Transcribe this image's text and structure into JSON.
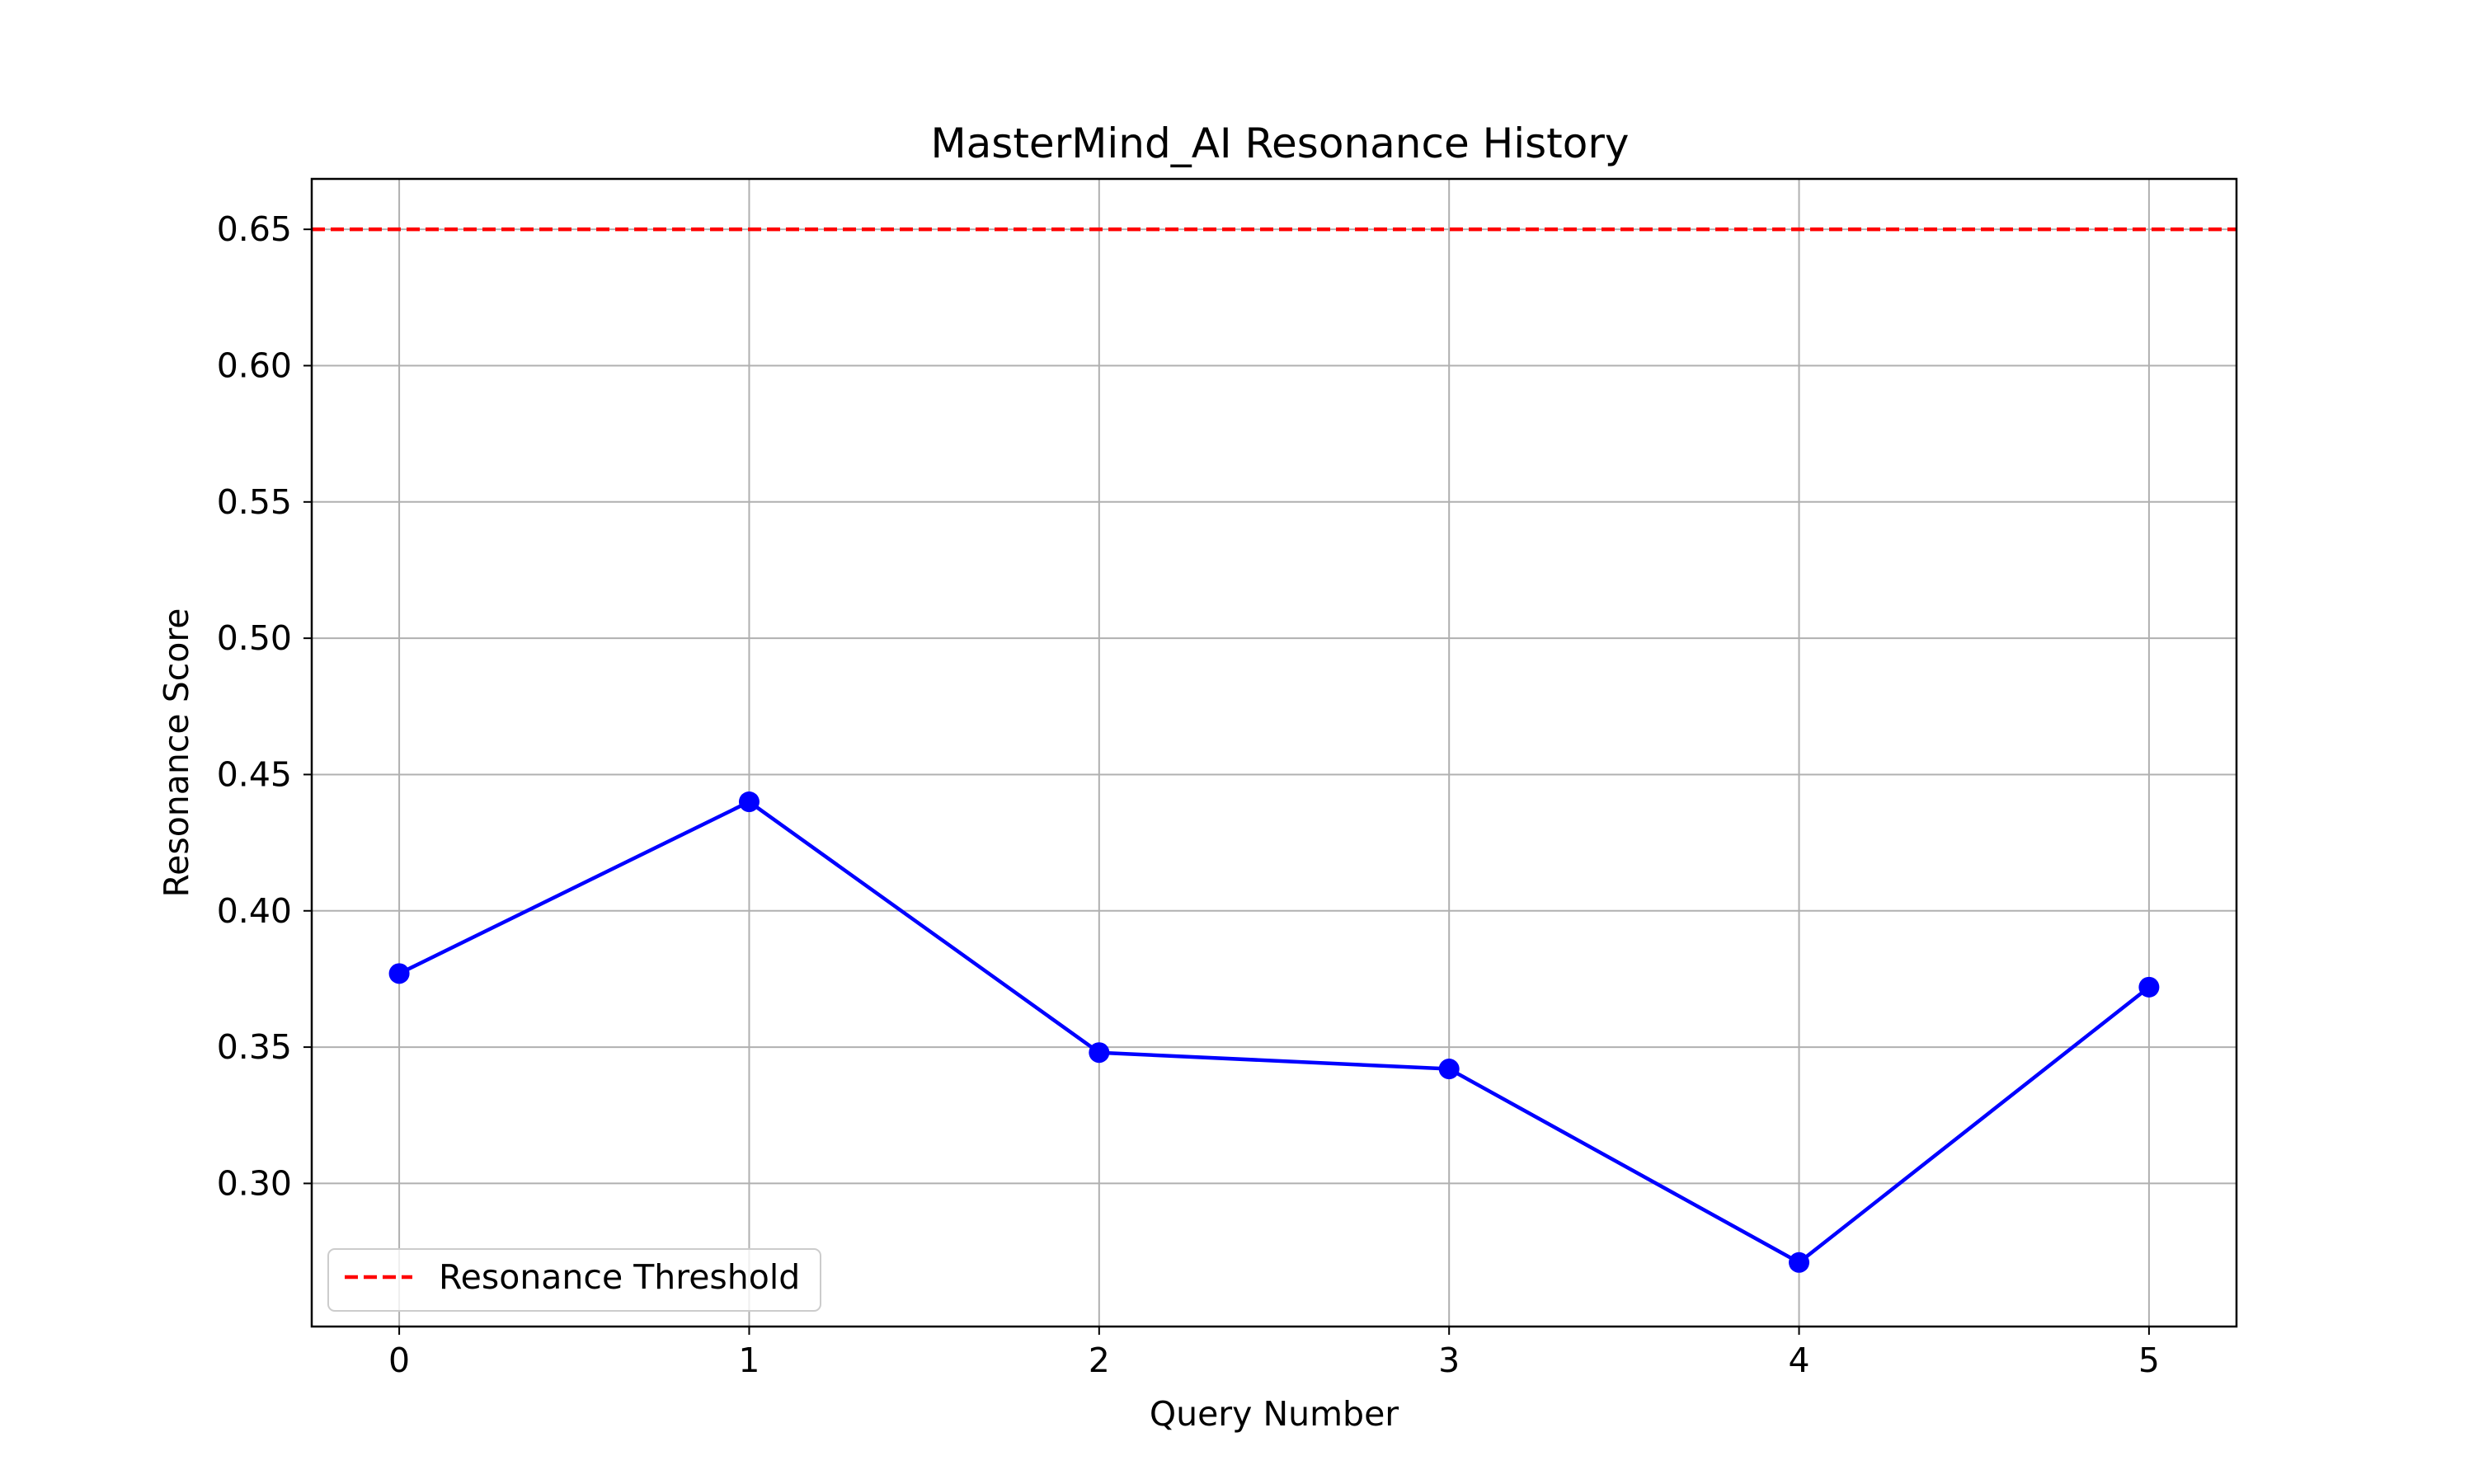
{
  "chart_data": {
    "type": "line",
    "title": "MasterMind_AI Resonance History",
    "xlabel": "Query Number",
    "ylabel": "Resonance Score",
    "x": [
      0,
      1,
      2,
      3,
      4,
      5
    ],
    "xticks": [
      "0",
      "1",
      "2",
      "3",
      "4",
      "5"
    ],
    "xlim": [
      -0.25,
      5.25
    ],
    "ylim": [
      0.2475,
      0.6685
    ],
    "yticks": [
      "0.30",
      "0.35",
      "0.40",
      "0.45",
      "0.50",
      "0.55",
      "0.60",
      "0.65"
    ],
    "grid": true,
    "series": [
      {
        "values": [
          0.377,
          0.44,
          0.348,
          0.342,
          0.271,
          0.372
        ],
        "color": "#0000ff",
        "marker": "circle",
        "line_style": "solid"
      }
    ],
    "reference_lines": [
      {
        "name": "Resonance Threshold",
        "y": 0.65,
        "color": "#ff0000",
        "line_style": "dashed"
      }
    ],
    "legend": {
      "placement": "lower-left",
      "entries": [
        {
          "label": "Resonance Threshold",
          "color": "#ff0000",
          "line_style": "dashed"
        }
      ]
    }
  }
}
